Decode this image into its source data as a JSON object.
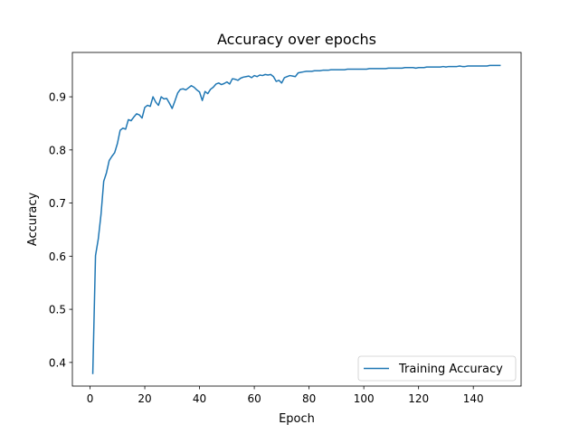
{
  "chart_data": {
    "type": "line",
    "title": "Accuracy over epochs",
    "xlabel": "Epoch",
    "ylabel": "Accuracy",
    "xlim": [
      -6.45,
      157.45
    ],
    "ylim": [
      0.3555,
      0.9835
    ],
    "xticks": [
      0,
      20,
      40,
      60,
      80,
      100,
      120,
      140
    ],
    "xtick_labels": [
      "0",
      "20",
      "40",
      "60",
      "80",
      "100",
      "120",
      "140"
    ],
    "yticks": [
      0.4,
      0.5,
      0.6,
      0.7,
      0.8,
      0.9
    ],
    "ytick_labels": [
      "0.4",
      "0.5",
      "0.6",
      "0.7",
      "0.8",
      "0.9"
    ],
    "grid": false,
    "legend": {
      "position": "lower-right"
    },
    "colors": {
      "series": "#1f77b4",
      "axes": "#000000",
      "background": "#ffffff"
    },
    "series": [
      {
        "name": "Training Accuracy",
        "x": [
          1,
          2,
          3,
          4,
          5,
          6,
          7,
          8,
          9,
          10,
          11,
          12,
          13,
          14,
          15,
          16,
          17,
          18,
          19,
          20,
          21,
          22,
          23,
          24,
          25,
          26,
          27,
          28,
          29,
          30,
          31,
          32,
          33,
          34,
          35,
          36,
          37,
          38,
          39,
          40,
          41,
          42,
          43,
          44,
          45,
          46,
          47,
          48,
          49,
          50,
          51,
          52,
          53,
          54,
          55,
          56,
          57,
          58,
          59,
          60,
          61,
          62,
          63,
          64,
          65,
          66,
          67,
          68,
          69,
          70,
          71,
          72,
          73,
          74,
          75,
          76,
          77,
          78,
          79,
          80,
          81,
          82,
          83,
          84,
          85,
          86,
          87,
          88,
          89,
          90,
          91,
          92,
          93,
          94,
          95,
          96,
          97,
          98,
          99,
          100,
          101,
          102,
          103,
          104,
          105,
          106,
          107,
          108,
          109,
          110,
          111,
          112,
          113,
          114,
          115,
          116,
          117,
          118,
          119,
          120,
          121,
          122,
          123,
          124,
          125,
          126,
          127,
          128,
          129,
          130,
          131,
          132,
          133,
          134,
          135,
          136,
          137,
          138,
          139,
          140,
          141,
          142,
          143,
          144,
          145,
          146,
          147,
          148,
          149,
          150
        ],
        "values": [
          0.378,
          0.601,
          0.632,
          0.678,
          0.741,
          0.757,
          0.78,
          0.788,
          0.795,
          0.812,
          0.837,
          0.841,
          0.839,
          0.857,
          0.855,
          0.862,
          0.868,
          0.866,
          0.86,
          0.88,
          0.884,
          0.882,
          0.9,
          0.89,
          0.884,
          0.9,
          0.896,
          0.897,
          0.888,
          0.878,
          0.892,
          0.907,
          0.914,
          0.915,
          0.913,
          0.917,
          0.921,
          0.918,
          0.913,
          0.909,
          0.893,
          0.91,
          0.906,
          0.914,
          0.918,
          0.924,
          0.926,
          0.923,
          0.925,
          0.928,
          0.924,
          0.934,
          0.933,
          0.931,
          0.935,
          0.937,
          0.938,
          0.939,
          0.936,
          0.94,
          0.938,
          0.941,
          0.94,
          0.942,
          0.941,
          0.942,
          0.938,
          0.929,
          0.931,
          0.926,
          0.936,
          0.938,
          0.94,
          0.939,
          0.938,
          0.945,
          0.946,
          0.947,
          0.948,
          0.948,
          0.948,
          0.949,
          0.949,
          0.949,
          0.95,
          0.95,
          0.95,
          0.951,
          0.951,
          0.951,
          0.951,
          0.951,
          0.951,
          0.952,
          0.952,
          0.952,
          0.952,
          0.952,
          0.952,
          0.952,
          0.952,
          0.953,
          0.953,
          0.953,
          0.953,
          0.953,
          0.953,
          0.953,
          0.954,
          0.954,
          0.954,
          0.954,
          0.954,
          0.954,
          0.955,
          0.955,
          0.955,
          0.955,
          0.954,
          0.955,
          0.955,
          0.955,
          0.956,
          0.956,
          0.956,
          0.956,
          0.956,
          0.956,
          0.957,
          0.956,
          0.957,
          0.957,
          0.957,
          0.957,
          0.958,
          0.957,
          0.957,
          0.958,
          0.958,
          0.958,
          0.958,
          0.958,
          0.958,
          0.958,
          0.958,
          0.959,
          0.959,
          0.959,
          0.959,
          0.959
        ]
      }
    ]
  }
}
